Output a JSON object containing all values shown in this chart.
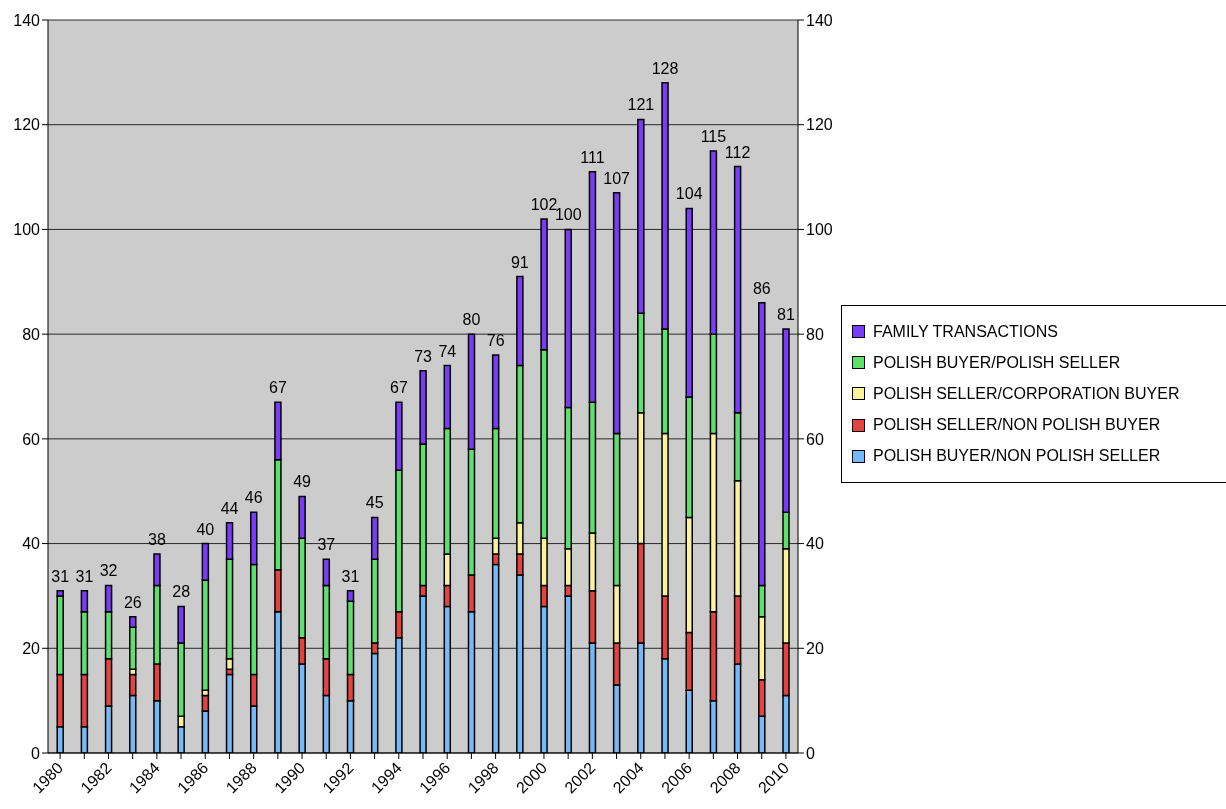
{
  "chart_data": {
    "type": "bar",
    "stacked": true,
    "categories": [
      "1980",
      null,
      "1982",
      null,
      "1984",
      null,
      "1986",
      null,
      "1988",
      null,
      "1990",
      null,
      "1992",
      null,
      "1994",
      null,
      "1996",
      null,
      "1998",
      null,
      "2000",
      null,
      "2002",
      null,
      "2004",
      null,
      "2006",
      null,
      "2008",
      null,
      "2010"
    ],
    "series": [
      {
        "name": "POLISH BUYER/NON POLISH SELLER",
        "color": "#75b9f9",
        "values": [
          5,
          5,
          9,
          11,
          10,
          5,
          8,
          15,
          9,
          27,
          17,
          11,
          10,
          19,
          22,
          30,
          28,
          27,
          36,
          34,
          28,
          30,
          21,
          13,
          21,
          18,
          12,
          10,
          17,
          7,
          11
        ]
      },
      {
        "name": "POLISH SELLER/NON POLISH BUYER",
        "color": "#e34440",
        "values": [
          10,
          10,
          9,
          4,
          7,
          0,
          3,
          1,
          6,
          8,
          5,
          7,
          5,
          2,
          5,
          2,
          4,
          7,
          2,
          4,
          4,
          2,
          10,
          8,
          19,
          12,
          11,
          17,
          13,
          7,
          10
        ]
      },
      {
        "name": "POLISH SELLER/CORPORATION BUYER",
        "color": "#fcf29b",
        "values": [
          0,
          0,
          0,
          1,
          0,
          2,
          1,
          2,
          0,
          0,
          0,
          0,
          0,
          0,
          0,
          0,
          6,
          0,
          3,
          6,
          9,
          7,
          11,
          11,
          25,
          31,
          22,
          34,
          22,
          12,
          18
        ]
      },
      {
        "name": "POLISH BUYER/POLISH SELLER",
        "color": "#5de06c",
        "values": [
          15,
          12,
          9,
          8,
          15,
          14,
          21,
          19,
          21,
          21,
          19,
          14,
          14,
          16,
          27,
          27,
          24,
          24,
          21,
          30,
          36,
          27,
          25,
          29,
          19,
          20,
          23,
          19,
          13,
          6,
          7
        ]
      },
      {
        "name": "FAMILY TRANSACTIONS",
        "color": "#7b3cf8",
        "values": [
          1,
          4,
          5,
          2,
          6,
          7,
          7,
          7,
          10,
          11,
          8,
          5,
          2,
          8,
          13,
          14,
          12,
          22,
          14,
          17,
          25,
          34,
          44,
          46,
          37,
          47,
          36,
          35,
          47,
          54,
          35
        ]
      }
    ],
    "totals": [
      "31",
      "31",
      "32",
      "26",
      "38",
      "28",
      "40",
      "44",
      "46",
      "67",
      "49",
      "37",
      "31",
      "45",
      "67",
      "73",
      "74",
      "80",
      "76",
      "91",
      "102",
      "100",
      "111",
      "107",
      "121",
      "128",
      "104",
      "115",
      "112",
      "86",
      "81"
    ],
    "ylim": [
      0,
      140
    ],
    "yticks": [
      0,
      20,
      40,
      60,
      80,
      100,
      120,
      140
    ],
    "y2lim": [
      0,
      140
    ],
    "y2ticks": [
      0,
      20,
      40,
      60,
      80,
      100,
      120,
      140
    ],
    "grid": "y",
    "legend": "right"
  }
}
